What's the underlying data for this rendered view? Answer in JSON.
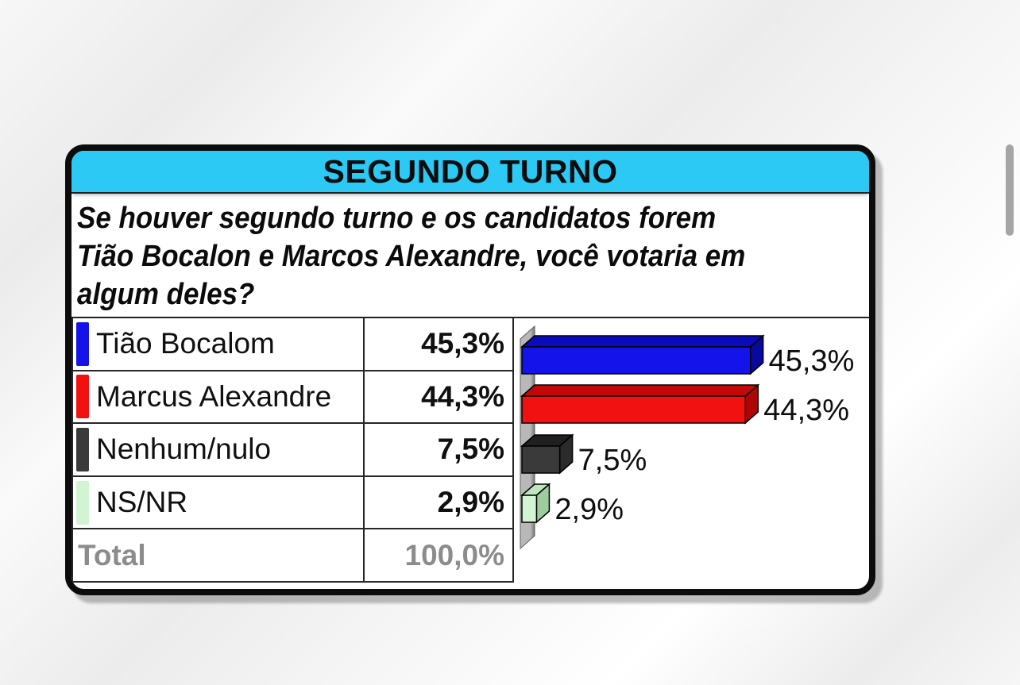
{
  "window": {
    "scrollbar_thumb_color": "#a5a5a5"
  },
  "card": {
    "header": {
      "title": "SEGUNDO TURNO",
      "background_color": "#2cc9f4"
    },
    "question": {
      "lines": [
        "Se houver segundo turno e os candidatos forem",
        "Tião Bocalon e Marcos Alexandre, você votaria em",
        "algum deles?"
      ]
    },
    "table": {
      "rows": [
        {
          "label": "Tião Bocalom",
          "value": "45,3%"
        },
        {
          "label": "Marcus Alexandre",
          "value": "44,3%"
        },
        {
          "label": "Nenhum/nulo",
          "value": "7,5%"
        },
        {
          "label": "NS/NR",
          "value": "2,9%"
        }
      ],
      "total": {
        "label": "Total",
        "value": "100,0%"
      }
    }
  },
  "chart_data": {
    "type": "bar",
    "orientation": "horizontal",
    "style": "3d",
    "categories": [
      "Tião Bocalom",
      "Marcus Alexandre",
      "Nenhum/nulo",
      "NS/NR"
    ],
    "values": [
      45.3,
      44.3,
      7.5,
      2.9
    ],
    "value_labels": [
      "45,3%",
      "44,3%",
      "7,5%",
      "2,9%"
    ],
    "xlim": [
      0,
      50
    ],
    "grid": false,
    "legend_position": "table-left",
    "axis_wall_colors": {
      "light": "#b8b8b8",
      "dark": "#787878"
    },
    "bar_colors": [
      {
        "front": "#1414ea",
        "top": "#0b0bbe",
        "side": "#0909a0"
      },
      {
        "front": "#f21111",
        "top": "#c40808",
        "side": "#ad0606"
      },
      {
        "front": "#3a3a3a",
        "top": "#202020",
        "side": "#2b2b2b"
      },
      {
        "front": "#d2f4d2",
        "top": "#bce6bc",
        "side": "#9fcc9f"
      }
    ],
    "title": "SEGUNDO TURNO"
  }
}
